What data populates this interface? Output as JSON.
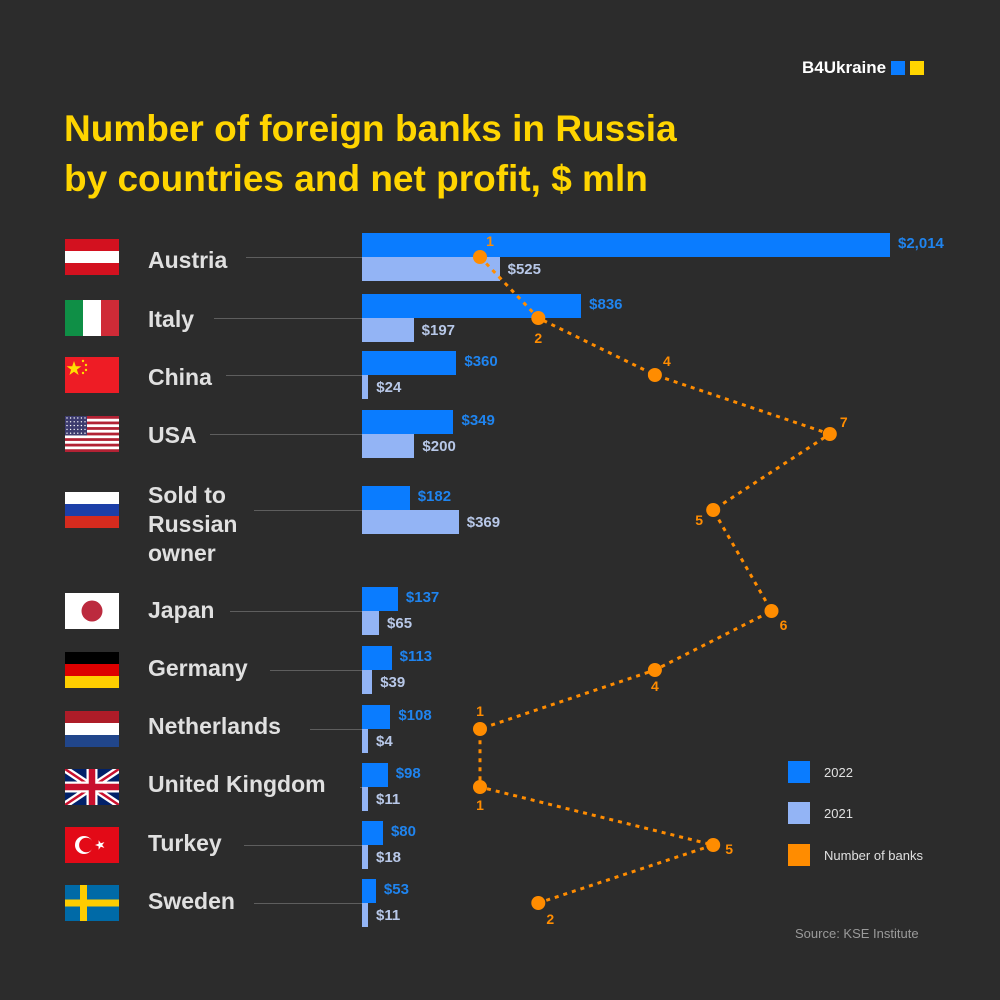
{
  "brand": {
    "name": "B4Ukraine",
    "colors": [
      "#0a7cff",
      "#ffd500"
    ]
  },
  "title_line1": "Number of foreign banks in Russia",
  "title_line2": "by countries and net profit, $ mln",
  "legend": {
    "y2022": {
      "label": "2022",
      "color": "#0a7cff"
    },
    "y2021": {
      "label": "2021",
      "color": "#93b4f5"
    },
    "banks": {
      "label": "Number of banks",
      "color": "#ff8c00"
    }
  },
  "source": "Source: KSE Institute",
  "rows": [
    {
      "country": "Austria",
      "flag": "austria",
      "v2022": 2014,
      "v2021": 525,
      "label2022": "$2,014",
      "label2021": "$525",
      "banks": 1
    },
    {
      "country": "Italy",
      "flag": "italy",
      "v2022": 836,
      "v2021": 197,
      "label2022": "$836",
      "label2021": "$197",
      "banks": 2
    },
    {
      "country": "China",
      "flag": "china",
      "v2022": 360,
      "v2021": 24,
      "label2022": "$360",
      "label2021": "$24",
      "banks": 4
    },
    {
      "country": "USA",
      "flag": "usa",
      "v2022": 349,
      "v2021": 200,
      "label2022": "$349",
      "label2021": "$200",
      "banks": 7
    },
    {
      "country": "Sold to Russian owner",
      "flag": "russia",
      "v2022": 182,
      "v2021": 369,
      "label2022": "$182",
      "label2021": "$369",
      "banks": 5
    },
    {
      "country": "Japan",
      "flag": "japan",
      "v2022": 137,
      "v2021": 65,
      "label2022": "$137",
      "label2021": "$65",
      "banks": 6
    },
    {
      "country": "Germany",
      "flag": "germany",
      "v2022": 113,
      "v2021": 39,
      "label2022": "$113",
      "label2021": "$39",
      "banks": 4
    },
    {
      "country": "Netherlands",
      "flag": "netherlands",
      "v2022": 108,
      "v2021": 4,
      "label2022": "$108",
      "label2021": "$4",
      "banks": 1
    },
    {
      "country": "United Kingdom",
      "flag": "uk",
      "v2022": 98,
      "v2021": 11,
      "label2022": "$98",
      "label2021": "$11",
      "banks": 1
    },
    {
      "country": "Turkey",
      "flag": "turkey",
      "v2022": 80,
      "v2021": 18,
      "label2022": "$80",
      "label2021": "$18",
      "banks": 5
    },
    {
      "country": "Sweden",
      "flag": "sweden",
      "v2022": 53,
      "v2021": 11,
      "label2022": "$53",
      "label2021": "$11",
      "banks": 2
    }
  ],
  "chart_data": {
    "type": "bar",
    "title": "Number of foreign banks in Russia by countries and net profit, $ mln",
    "orientation": "horizontal",
    "categories": [
      "Austria",
      "Italy",
      "China",
      "USA",
      "Sold to Russian owner",
      "Japan",
      "Germany",
      "Netherlands",
      "United Kingdom",
      "Turkey",
      "Sweden"
    ],
    "series": [
      {
        "name": "2022",
        "type": "bar",
        "color": "#0a7cff",
        "values": [
          2014,
          836,
          360,
          349,
          182,
          137,
          113,
          108,
          98,
          80,
          53
        ]
      },
      {
        "name": "2021",
        "type": "bar",
        "color": "#93b4f5",
        "values": [
          525,
          197,
          24,
          200,
          369,
          65,
          39,
          4,
          11,
          18,
          11
        ]
      },
      {
        "name": "Number of banks",
        "type": "line",
        "style": "dotted",
        "color": "#ff8c00",
        "values": [
          1,
          2,
          4,
          7,
          5,
          6,
          4,
          1,
          1,
          5,
          2
        ]
      }
    ],
    "xlabel": "",
    "ylabel": "",
    "unit": "$ mln",
    "grid": false,
    "legend_position": "right-bottom",
    "source": "Source: KSE Institute"
  }
}
